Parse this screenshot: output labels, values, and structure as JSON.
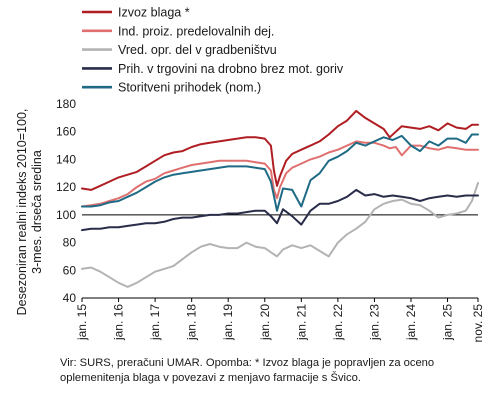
{
  "chart_data": {
    "type": "line",
    "ylabel_lines": [
      "Desezoniran realni indeks 2010=100,",
      "3-mes. drseča sredina"
    ],
    "ylim": [
      40,
      180
    ],
    "yticks": [
      40,
      60,
      80,
      100,
      120,
      140,
      160,
      180
    ],
    "reference_line": 100,
    "x_start": "2015-01",
    "x_end": "2025-11",
    "xtick_labels": [
      {
        "label": "jan. 15",
        "date": "2015-01"
      },
      {
        "label": "jan. 16",
        "date": "2016-01"
      },
      {
        "label": "jan. 17",
        "date": "2017-01"
      },
      {
        "label": "jan. 18",
        "date": "2018-01"
      },
      {
        "label": "jan. 19",
        "date": "2019-01"
      },
      {
        "label": "jan. 20",
        "date": "2020-01"
      },
      {
        "label": "jan. 21",
        "date": "2021-01"
      },
      {
        "label": "jan. 22",
        "date": "2022-01"
      },
      {
        "label": "jan. 23",
        "date": "2023-01"
      },
      {
        "label": "jan. 24",
        "date": "2024-01"
      },
      {
        "label": "jan. 25",
        "date": "2025-01"
      },
      {
        "label": "nov. 25",
        "date": "2025-11"
      }
    ],
    "legend_position": "top",
    "grid": false,
    "series": [
      {
        "name": "Izvoz blaga *",
        "color": "#b01e23",
        "points": [
          [
            "2015-01",
            119
          ],
          [
            "2015-04",
            118
          ],
          [
            "2015-07",
            121
          ],
          [
            "2015-10",
            124
          ],
          [
            "2016-01",
            127
          ],
          [
            "2016-04",
            129
          ],
          [
            "2016-07",
            131
          ],
          [
            "2016-10",
            135
          ],
          [
            "2017-01",
            139
          ],
          [
            "2017-04",
            143
          ],
          [
            "2017-07",
            145
          ],
          [
            "2017-10",
            146
          ],
          [
            "2018-01",
            149
          ],
          [
            "2018-04",
            151
          ],
          [
            "2018-07",
            152
          ],
          [
            "2018-10",
            153
          ],
          [
            "2019-01",
            154
          ],
          [
            "2019-04",
            155
          ],
          [
            "2019-07",
            156
          ],
          [
            "2019-10",
            156
          ],
          [
            "2020-01",
            155
          ],
          [
            "2020-03",
            150
          ],
          [
            "2020-04",
            132
          ],
          [
            "2020-05",
            121
          ],
          [
            "2020-06",
            128
          ],
          [
            "2020-08",
            139
          ],
          [
            "2020-10",
            144
          ],
          [
            "2021-01",
            147
          ],
          [
            "2021-04",
            150
          ],
          [
            "2021-07",
            153
          ],
          [
            "2021-10",
            158
          ],
          [
            "2022-01",
            164
          ],
          [
            "2022-04",
            168
          ],
          [
            "2022-07",
            175
          ],
          [
            "2022-10",
            170
          ],
          [
            "2023-01",
            166
          ],
          [
            "2023-04",
            162
          ],
          [
            "2023-06",
            156
          ],
          [
            "2023-08",
            160
          ],
          [
            "2023-10",
            164
          ],
          [
            "2024-01",
            163
          ],
          [
            "2024-04",
            162
          ],
          [
            "2024-07",
            164
          ],
          [
            "2024-10",
            161
          ],
          [
            "2025-01",
            166
          ],
          [
            "2025-04",
            163
          ],
          [
            "2025-07",
            162
          ],
          [
            "2025-09",
            165
          ],
          [
            "2025-11",
            165
          ]
        ]
      },
      {
        "name": "Ind. proiz. predelovalnih dej.",
        "color": "#e07070",
        "points": [
          [
            "2015-01",
            106
          ],
          [
            "2015-04",
            107
          ],
          [
            "2015-07",
            108
          ],
          [
            "2015-10",
            110
          ],
          [
            "2016-01",
            112
          ],
          [
            "2016-04",
            115
          ],
          [
            "2016-07",
            120
          ],
          [
            "2016-10",
            124
          ],
          [
            "2017-01",
            126
          ],
          [
            "2017-04",
            130
          ],
          [
            "2017-07",
            132
          ],
          [
            "2017-10",
            134
          ],
          [
            "2018-01",
            136
          ],
          [
            "2018-04",
            137
          ],
          [
            "2018-07",
            138
          ],
          [
            "2018-10",
            139
          ],
          [
            "2019-01",
            139
          ],
          [
            "2019-04",
            139
          ],
          [
            "2019-07",
            139
          ],
          [
            "2019-10",
            138
          ],
          [
            "2020-01",
            137
          ],
          [
            "2020-03",
            132
          ],
          [
            "2020-04",
            118
          ],
          [
            "2020-05",
            112
          ],
          [
            "2020-06",
            120
          ],
          [
            "2020-08",
            130
          ],
          [
            "2020-10",
            134
          ],
          [
            "2021-01",
            137
          ],
          [
            "2021-04",
            140
          ],
          [
            "2021-07",
            142
          ],
          [
            "2021-10",
            145
          ],
          [
            "2022-01",
            147
          ],
          [
            "2022-04",
            150
          ],
          [
            "2022-07",
            153
          ],
          [
            "2022-10",
            152
          ],
          [
            "2023-01",
            152
          ],
          [
            "2023-04",
            150
          ],
          [
            "2023-06",
            148
          ],
          [
            "2023-08",
            149
          ],
          [
            "2023-10",
            143
          ],
          [
            "2024-01",
            150
          ],
          [
            "2024-04",
            150
          ],
          [
            "2024-07",
            148
          ],
          [
            "2024-10",
            147
          ],
          [
            "2025-01",
            149
          ],
          [
            "2025-04",
            148
          ],
          [
            "2025-07",
            147
          ],
          [
            "2025-09",
            147
          ],
          [
            "2025-11",
            147
          ]
        ]
      },
      {
        "name": "Vred. opr. del v gradbeništvu",
        "color": "#b3b3b3",
        "points": [
          [
            "2015-01",
            61
          ],
          [
            "2015-04",
            62
          ],
          [
            "2015-07",
            59
          ],
          [
            "2015-10",
            55
          ],
          [
            "2016-01",
            51
          ],
          [
            "2016-04",
            48
          ],
          [
            "2016-07",
            51
          ],
          [
            "2016-10",
            55
          ],
          [
            "2017-01",
            59
          ],
          [
            "2017-04",
            61
          ],
          [
            "2017-07",
            63
          ],
          [
            "2017-10",
            68
          ],
          [
            "2018-01",
            73
          ],
          [
            "2018-04",
            77
          ],
          [
            "2018-07",
            79
          ],
          [
            "2018-10",
            77
          ],
          [
            "2019-01",
            76
          ],
          [
            "2019-04",
            76
          ],
          [
            "2019-07",
            80
          ],
          [
            "2019-10",
            77
          ],
          [
            "2020-01",
            76
          ],
          [
            "2020-03",
            73
          ],
          [
            "2020-05",
            70
          ],
          [
            "2020-07",
            75
          ],
          [
            "2020-10",
            78
          ],
          [
            "2021-01",
            76
          ],
          [
            "2021-04",
            78
          ],
          [
            "2021-07",
            74
          ],
          [
            "2021-10",
            70
          ],
          [
            "2022-01",
            80
          ],
          [
            "2022-04",
            86
          ],
          [
            "2022-07",
            90
          ],
          [
            "2022-10",
            95
          ],
          [
            "2023-01",
            104
          ],
          [
            "2023-04",
            108
          ],
          [
            "2023-07",
            110
          ],
          [
            "2023-10",
            111
          ],
          [
            "2024-01",
            108
          ],
          [
            "2024-04",
            107
          ],
          [
            "2024-07",
            103
          ],
          [
            "2024-10",
            98
          ],
          [
            "2025-01",
            100
          ],
          [
            "2025-04",
            101
          ],
          [
            "2025-07",
            103
          ],
          [
            "2025-09",
            110
          ],
          [
            "2025-11",
            123
          ]
        ]
      },
      {
        "name": "Prih. v trgovini na drobno brez mot. goriv",
        "color": "#2a2d4a",
        "points": [
          [
            "2015-01",
            89
          ],
          [
            "2015-04",
            90
          ],
          [
            "2015-07",
            90
          ],
          [
            "2015-10",
            91
          ],
          [
            "2016-01",
            91
          ],
          [
            "2016-04",
            92
          ],
          [
            "2016-07",
            93
          ],
          [
            "2016-10",
            94
          ],
          [
            "2017-01",
            94
          ],
          [
            "2017-04",
            95
          ],
          [
            "2017-07",
            97
          ],
          [
            "2017-10",
            98
          ],
          [
            "2018-01",
            98
          ],
          [
            "2018-04",
            99
          ],
          [
            "2018-07",
            100
          ],
          [
            "2018-10",
            100
          ],
          [
            "2019-01",
            101
          ],
          [
            "2019-04",
            101
          ],
          [
            "2019-07",
            102
          ],
          [
            "2019-10",
            103
          ],
          [
            "2020-01",
            103
          ],
          [
            "2020-03",
            99
          ],
          [
            "2020-05",
            94
          ],
          [
            "2020-07",
            104
          ],
          [
            "2020-10",
            99
          ],
          [
            "2021-01",
            93
          ],
          [
            "2021-04",
            103
          ],
          [
            "2021-07",
            108
          ],
          [
            "2021-10",
            108
          ],
          [
            "2022-01",
            110
          ],
          [
            "2022-04",
            113
          ],
          [
            "2022-07",
            118
          ],
          [
            "2022-10",
            114
          ],
          [
            "2023-01",
            115
          ],
          [
            "2023-04",
            113
          ],
          [
            "2023-07",
            114
          ],
          [
            "2023-10",
            113
          ],
          [
            "2024-01",
            112
          ],
          [
            "2024-04",
            110
          ],
          [
            "2024-07",
            112
          ],
          [
            "2024-10",
            113
          ],
          [
            "2025-01",
            114
          ],
          [
            "2025-04",
            113
          ],
          [
            "2025-07",
            114
          ],
          [
            "2025-09",
            114
          ],
          [
            "2025-11",
            114
          ]
        ]
      },
      {
        "name": "Storitveni prihodek (nom.)",
        "color": "#1f6b85",
        "points": [
          [
            "2015-01",
            106
          ],
          [
            "2015-04",
            106
          ],
          [
            "2015-07",
            107
          ],
          [
            "2015-10",
            109
          ],
          [
            "2016-01",
            110
          ],
          [
            "2016-04",
            113
          ],
          [
            "2016-07",
            116
          ],
          [
            "2016-10",
            120
          ],
          [
            "2017-01",
            124
          ],
          [
            "2017-04",
            127
          ],
          [
            "2017-07",
            129
          ],
          [
            "2017-10",
            130
          ],
          [
            "2018-01",
            131
          ],
          [
            "2018-04",
            132
          ],
          [
            "2018-07",
            133
          ],
          [
            "2018-10",
            134
          ],
          [
            "2019-01",
            135
          ],
          [
            "2019-04",
            135
          ],
          [
            "2019-07",
            135
          ],
          [
            "2019-10",
            134
          ],
          [
            "2020-01",
            133
          ],
          [
            "2020-03",
            124
          ],
          [
            "2020-05",
            103
          ],
          [
            "2020-07",
            119
          ],
          [
            "2020-10",
            118
          ],
          [
            "2021-01",
            106
          ],
          [
            "2021-04",
            125
          ],
          [
            "2021-07",
            130
          ],
          [
            "2021-10",
            139
          ],
          [
            "2022-01",
            142
          ],
          [
            "2022-04",
            146
          ],
          [
            "2022-07",
            152
          ],
          [
            "2022-10",
            150
          ],
          [
            "2023-01",
            153
          ],
          [
            "2023-04",
            156
          ],
          [
            "2023-07",
            154
          ],
          [
            "2023-10",
            157
          ],
          [
            "2024-01",
            150
          ],
          [
            "2024-04",
            146
          ],
          [
            "2024-07",
            153
          ],
          [
            "2024-10",
            150
          ],
          [
            "2025-01",
            155
          ],
          [
            "2025-04",
            155
          ],
          [
            "2025-07",
            152
          ],
          [
            "2025-09",
            158
          ],
          [
            "2025-11",
            158
          ]
        ]
      }
    ]
  },
  "source_note": "Vir: SURS, preračuni UMAR. Opomba: * Izvoz blaga je popravljen za oceno oplemenitenja blaga v povezavi z menjavo farmacije s Švico."
}
